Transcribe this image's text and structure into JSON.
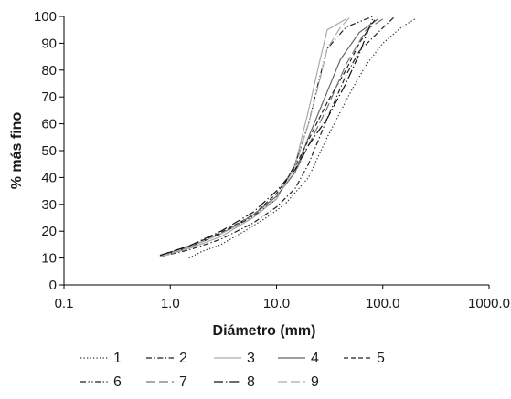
{
  "chart_data": {
    "type": "line",
    "title": "",
    "xlabel": "Diámetro (mm)",
    "ylabel": "% más fino",
    "x_scale": "log",
    "xlim": [
      0.1,
      1000
    ],
    "ylim": [
      0,
      100
    ],
    "x_ticks": [
      "0.1",
      "1.0",
      "10.0",
      "100.0",
      "1000.0"
    ],
    "y_ticks": [
      "0",
      "10",
      "20",
      "30",
      "40",
      "50",
      "60",
      "70",
      "80",
      "90",
      "100"
    ],
    "grid": false,
    "legend_position": "bottom",
    "series": [
      {
        "name": "1",
        "style": "dotted",
        "color": "#333333",
        "points": [
          [
            1.5,
            10
          ],
          [
            2,
            12.5
          ],
          [
            3,
            15
          ],
          [
            5,
            20
          ],
          [
            8,
            25
          ],
          [
            12,
            30
          ],
          [
            20,
            40
          ],
          [
            30,
            55
          ],
          [
            50,
            72
          ],
          [
            70,
            82
          ],
          [
            100,
            90
          ],
          [
            150,
            96
          ],
          [
            200,
            99
          ]
        ]
      },
      {
        "name": "2",
        "style": "dashdot",
        "color": "#222222",
        "points": [
          [
            0.8,
            10.5
          ],
          [
            1.5,
            13
          ],
          [
            3,
            17
          ],
          [
            6,
            23
          ],
          [
            10,
            29
          ],
          [
            15,
            36
          ],
          [
            20,
            45
          ],
          [
            30,
            62
          ],
          [
            45,
            78
          ],
          [
            60,
            87
          ],
          [
            90,
            94
          ],
          [
            130,
            100
          ]
        ]
      },
      {
        "name": "3",
        "style": "solid",
        "color": "#aaaaaa",
        "points": [
          [
            0.8,
            10.5
          ],
          [
            1.5,
            13.5
          ],
          [
            3,
            18
          ],
          [
            6,
            25
          ],
          [
            10,
            32
          ],
          [
            15,
            45
          ],
          [
            20,
            65
          ],
          [
            25,
            82
          ],
          [
            30,
            95
          ],
          [
            45,
            99
          ]
        ]
      },
      {
        "name": "4",
        "style": "solid",
        "color": "#666666",
        "points": [
          [
            0.8,
            11
          ],
          [
            1.5,
            14
          ],
          [
            3,
            19
          ],
          [
            6,
            26
          ],
          [
            10,
            33
          ],
          [
            15,
            42
          ],
          [
            20,
            55
          ],
          [
            30,
            72
          ],
          [
            40,
            84
          ],
          [
            60,
            94
          ],
          [
            90,
            99
          ]
        ]
      },
      {
        "name": "5",
        "style": "dashed",
        "color": "#222222",
        "points": [
          [
            0.8,
            11
          ],
          [
            1.5,
            14.5
          ],
          [
            3,
            19.5
          ],
          [
            6,
            26
          ],
          [
            10,
            34
          ],
          [
            15,
            44
          ],
          [
            20,
            54
          ],
          [
            30,
            68
          ],
          [
            45,
            80
          ],
          [
            60,
            90
          ],
          [
            85,
            99
          ]
        ]
      },
      {
        "name": "6",
        "style": "dashdotdot",
        "color": "#222222",
        "points": [
          [
            0.8,
            10.5
          ],
          [
            1.5,
            14
          ],
          [
            3,
            19
          ],
          [
            6,
            25.5
          ],
          [
            10,
            32
          ],
          [
            15,
            45
          ],
          [
            20,
            60
          ],
          [
            25,
            76
          ],
          [
            30,
            88
          ],
          [
            45,
            96
          ],
          [
            80,
            100
          ]
        ]
      },
      {
        "name": "7",
        "style": "longdash",
        "color": "#777777",
        "points": [
          [
            0.8,
            11
          ],
          [
            1.5,
            14
          ],
          [
            3,
            19
          ],
          [
            6,
            26
          ],
          [
            10,
            33
          ],
          [
            15,
            42
          ],
          [
            20,
            52
          ],
          [
            30,
            66
          ],
          [
            45,
            82
          ],
          [
            70,
            95
          ],
          [
            100,
            99
          ]
        ]
      },
      {
        "name": "8",
        "style": "longdashdot",
        "color": "#111111",
        "points": [
          [
            0.8,
            11
          ],
          [
            1.5,
            14.5
          ],
          [
            3,
            20
          ],
          [
            6,
            27
          ],
          [
            10,
            35
          ],
          [
            15,
            43
          ],
          [
            20,
            52
          ],
          [
            30,
            62
          ],
          [
            45,
            75
          ],
          [
            60,
            86
          ],
          [
            80,
            99
          ]
        ]
      },
      {
        "name": "9",
        "style": "longdash",
        "color": "#aaaaaa",
        "points": [
          [
            0.8,
            10.5
          ],
          [
            1.5,
            14
          ],
          [
            3,
            19
          ],
          [
            6,
            25
          ],
          [
            10,
            32
          ],
          [
            15,
            44
          ],
          [
            20,
            60
          ],
          [
            25,
            75
          ],
          [
            30,
            88
          ],
          [
            40,
            96
          ],
          [
            50,
            100
          ]
        ]
      }
    ]
  }
}
